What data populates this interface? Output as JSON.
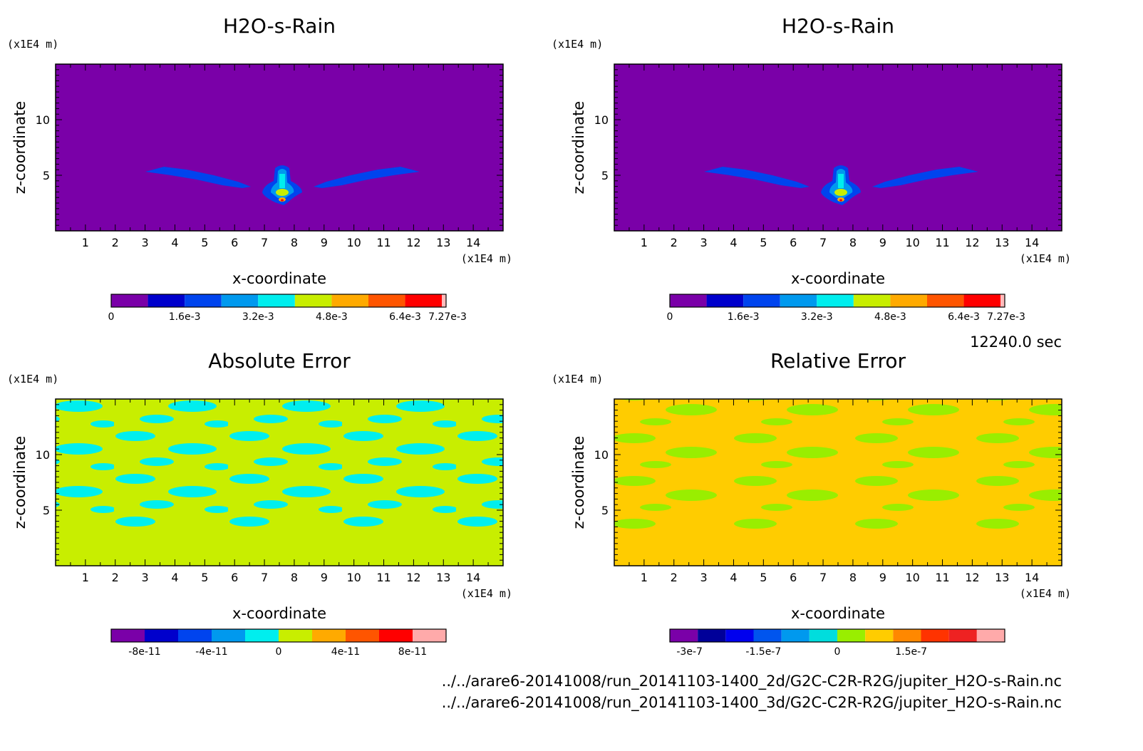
{
  "colors": {
    "rain": [
      "#7a00a8",
      "#0000cc",
      "#0044ee",
      "#0099ee",
      "#00eeee",
      "#c8ee00",
      "#ffaa00",
      "#ff5500",
      "#ff0000",
      "#ffbbbb"
    ],
    "abs": [
      "#7a00a8",
      "#0000cc",
      "#0044ee",
      "#0099ee",
      "#00eeee",
      "#c8ee00",
      "#ffaa00",
      "#ff5500",
      "#ff0000",
      "#ffaaaa"
    ],
    "rel": [
      "#7a00a8",
      "#000099",
      "#0000ee",
      "#0055ee",
      "#0099ee",
      "#00dddd",
      "#99ee00",
      "#ffcc00",
      "#ff8800",
      "#ff3300",
      "#ee2222",
      "#ffaaaa"
    ]
  },
  "time_label": "12240.0 sec",
  "footer": {
    "file1": "../../arare6-20141008/run_20141103-1400_2d/G2C-C2R-R2G/jupiter_H2O-s-Rain.nc",
    "file2": "../../arare6-20141008/run_20141103-1400_3d/G2C-C2R-R2G/jupiter_H2O-s-Rain.nc"
  },
  "chart_data": [
    {
      "type": "heatmap",
      "title": "H2O-s-Rain",
      "xlabel": "x-coordinate",
      "ylabel": "z-coordinate",
      "x_unit": "(x1E4 m)",
      "y_unit": "(x1E4 m)",
      "xlim": [
        0,
        15
      ],
      "ylim": [
        0,
        15
      ],
      "x_ticks": [
        "1",
        "2",
        "3",
        "4",
        "5",
        "6",
        "7",
        "8",
        "9",
        "10",
        "11",
        "12",
        "13",
        "14"
      ],
      "y_ticks": [
        "5",
        "10"
      ],
      "colorbar_labels": [
        "0",
        "1.6e-3",
        "3.2e-3",
        "4.8e-3",
        "6.4e-3",
        "7.27e-3"
      ],
      "colorbar_min": 0,
      "colorbar_max": 0.00727
    },
    {
      "type": "heatmap",
      "title": "H2O-s-Rain",
      "xlabel": "x-coordinate",
      "ylabel": "z-coordinate",
      "x_unit": "(x1E4 m)",
      "y_unit": "(x1E4 m)",
      "xlim": [
        0,
        15
      ],
      "ylim": [
        0,
        15
      ],
      "x_ticks": [
        "1",
        "2",
        "3",
        "4",
        "5",
        "6",
        "7",
        "8",
        "9",
        "10",
        "11",
        "12",
        "13",
        "14"
      ],
      "y_ticks": [
        "5",
        "10"
      ],
      "colorbar_labels": [
        "0",
        "1.6e-3",
        "3.2e-3",
        "4.8e-3",
        "6.4e-3",
        "7.27e-3"
      ],
      "colorbar_min": 0,
      "colorbar_max": 0.00727
    },
    {
      "type": "heatmap",
      "title": "Absolute Error",
      "xlabel": "x-coordinate",
      "ylabel": "z-coordinate",
      "x_unit": "(x1E4 m)",
      "y_unit": "(x1E4 m)",
      "xlim": [
        0,
        15
      ],
      "ylim": [
        0,
        15
      ],
      "x_ticks": [
        "1",
        "2",
        "3",
        "4",
        "5",
        "6",
        "7",
        "8",
        "9",
        "10",
        "11",
        "12",
        "13",
        "14"
      ],
      "y_ticks": [
        "5",
        "10"
      ],
      "colorbar_labels": [
        "-8e-11",
        "-4e-11",
        "0",
        "4e-11",
        "8e-11"
      ],
      "colorbar_min": -1e-10,
      "colorbar_max": 1e-10
    },
    {
      "type": "heatmap",
      "title": "Relative Error",
      "xlabel": "x-coordinate",
      "ylabel": "z-coordinate",
      "x_unit": "(x1E4 m)",
      "y_unit": "(x1E4 m)",
      "xlim": [
        0,
        15
      ],
      "ylim": [
        0,
        15
      ],
      "x_ticks": [
        "1",
        "2",
        "3",
        "4",
        "5",
        "6",
        "7",
        "8",
        "9",
        "10",
        "11",
        "12",
        "13",
        "14"
      ],
      "y_ticks": [
        "5",
        "10"
      ],
      "colorbar_labels": [
        "-3e-7",
        "-1.5e-7",
        "0",
        "1.5e-7"
      ],
      "colorbar_min": -3.4e-07,
      "colorbar_max": 3.4e-07
    }
  ]
}
